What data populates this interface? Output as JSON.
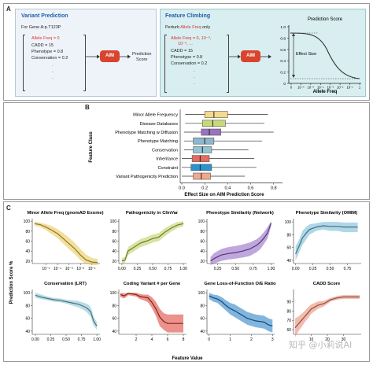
{
  "panelA": {
    "label": "A",
    "left": {
      "title": "Variant Prediction",
      "gene": "For Gene A:p.T123P",
      "features": [
        "Allele Freq = 0",
        "CADD = 15",
        "Phenotype = 0.8",
        "Conservation = 0.2",
        "·",
        "·",
        "·"
      ],
      "aim": "AIM",
      "output": "Prediction\nScore"
    },
    "right": {
      "title": "Feature Climbing",
      "perturb_pre": "Perturb ",
      "perturb_red": "Allele Freq",
      "perturb_post": " only",
      "features": [
        "Allele Freq = 0, 10⁻⁶,",
        "10⁻⁵, ...",
        "CADD = 15",
        "Phenotype = 0.8",
        "Conservation = 0.2",
        "·",
        "·",
        "·"
      ],
      "aim": "AIM",
      "mini_chart": {
        "title": "Prediction Score",
        "xlabel": "Allele Freq",
        "annotation": "Effect Size",
        "yticks": [
          "1.0",
          "0.8",
          "0.6",
          "0.4",
          "0.2",
          "0"
        ],
        "xticks": [
          "0",
          "10⁻⁶",
          "10⁻⁵",
          "10⁻⁴",
          "10⁻³",
          "10⁻²",
          "10⁻¹",
          "1"
        ]
      }
    }
  },
  "panelB": {
    "label": "B",
    "ylabel": "Feature Class",
    "xlabel": "Effect Size on AIM Prediction Score",
    "xticks": [
      "0.0",
      "0.2",
      "0.4",
      "0.6",
      "0.8"
    ]
  },
  "panelC": {
    "label": "C",
    "ylabel": "Prediction Score %",
    "xlabel": "Feature Value",
    "watermark": "知乎 @小莉说AI"
  },
  "chart_data": [
    {
      "type": "boxplot",
      "categories": [
        "Minor Allele Frequency",
        "Disease Databases",
        "Phenotype Matching w Diffusion",
        "Phenotype Matching",
        "Conservation",
        "Inheritance",
        "Constraint",
        "Variant Pathogenicity Prediction"
      ],
      "colors": [
        "#f3d98c",
        "#c8d97a",
        "#9a72c0",
        "#8fb8cc",
        "#8fc6d6",
        "#e46b5e",
        "#2b92cf",
        "#f3a88e"
      ],
      "boxes": [
        {
          "whisker_low": 0.03,
          "q1": 0.2,
          "median": 0.28,
          "q3": 0.4,
          "whisker_high": 0.75
        },
        {
          "whisker_low": 0.03,
          "q1": 0.18,
          "median": 0.27,
          "q3": 0.38,
          "whisker_high": 0.72
        },
        {
          "whisker_low": 0.02,
          "q1": 0.17,
          "median": 0.24,
          "q3": 0.34,
          "whisker_high": 0.8
        },
        {
          "whisker_low": 0.02,
          "q1": 0.1,
          "median": 0.2,
          "q3": 0.28,
          "whisker_high": 0.7
        },
        {
          "whisker_low": 0.02,
          "q1": 0.1,
          "median": 0.18,
          "q3": 0.26,
          "whisker_high": 0.58
        },
        {
          "whisker_low": 0.0,
          "q1": 0.09,
          "median": 0.16,
          "q3": 0.24,
          "whisker_high": 0.63
        },
        {
          "whisker_low": 0.0,
          "q1": 0.08,
          "median": 0.16,
          "q3": 0.26,
          "whisker_high": 0.65
        },
        {
          "whisker_low": 0.0,
          "q1": 0.1,
          "median": 0.17,
          "q3": 0.25,
          "whisker_high": 0.55
        }
      ],
      "xlim": [
        0,
        0.85
      ]
    },
    {
      "type": "area",
      "title": "Minor Allele Freq (gnomAD Exome)",
      "color": "#e8c548",
      "x": [
        -6,
        -5.5,
        -5,
        -4.5,
        -4,
        -3.5,
        -3,
        -2.5,
        -2,
        -1.5,
        -1,
        -0.5
      ],
      "xticks": [
        "10⁻⁵",
        "10⁻⁴",
        "10⁻³",
        "10⁻²",
        "10⁻¹"
      ],
      "xtick_values": [
        -5,
        -4,
        -3,
        -2,
        -1
      ],
      "mean": [
        95,
        93,
        88,
        82,
        75,
        65,
        55,
        45,
        32,
        22,
        18,
        17
      ],
      "lower": [
        91,
        88,
        82,
        74,
        66,
        55,
        44,
        34,
        22,
        14,
        12,
        12
      ],
      "upper": [
        99,
        97,
        94,
        90,
        84,
        76,
        67,
        57,
        44,
        33,
        26,
        24
      ],
      "xlim": [
        -6.2,
        -0.3
      ],
      "ylim": [
        15,
        105
      ],
      "yticks": [
        20,
        40,
        60,
        80,
        100
      ]
    },
    {
      "type": "area",
      "title": "Pathogenicity in ClinVar",
      "color": "#b9cc55",
      "x": [
        0,
        0.05,
        0.1,
        0.2,
        0.3,
        0.4,
        0.5,
        0.6,
        0.7,
        0.8,
        0.9,
        1.0
      ],
      "xticks": [
        "0.00",
        "0.25",
        "0.50",
        "0.75",
        "1.00"
      ],
      "xtick_values": [
        0,
        0.25,
        0.5,
        0.75,
        1.0
      ],
      "mean": [
        20,
        22,
        40,
        48,
        56,
        60,
        65,
        68,
        78,
        86,
        92,
        95
      ],
      "lower": [
        15,
        17,
        32,
        40,
        48,
        52,
        57,
        60,
        70,
        79,
        86,
        90
      ],
      "upper": [
        26,
        28,
        48,
        56,
        64,
        68,
        73,
        76,
        86,
        93,
        98,
        100
      ],
      "xlim": [
        -0.05,
        1.05
      ],
      "ylim": [
        15,
        105
      ],
      "yticks": [
        20,
        40,
        60,
        80,
        100
      ]
    },
    {
      "type": "area",
      "title": "Phenotype Similarity (Network)",
      "color": "#8a5cc0",
      "x": [
        0.15,
        0.2,
        0.3,
        0.4,
        0.5,
        0.6,
        0.7,
        0.8,
        0.85,
        0.9,
        0.95,
        1.0
      ],
      "xticks": [
        "0.25",
        "0.50",
        "0.75",
        "1.00"
      ],
      "xtick_values": [
        0.25,
        0.5,
        0.75,
        1.0
      ],
      "mean": [
        20,
        25,
        32,
        35,
        37,
        40,
        44,
        52,
        58,
        66,
        76,
        96
      ],
      "lower": [
        12,
        15,
        20,
        23,
        25,
        27,
        30,
        38,
        44,
        54,
        65,
        90
      ],
      "upper": [
        28,
        36,
        44,
        48,
        50,
        53,
        57,
        64,
        70,
        78,
        88,
        100
      ],
      "xlim": [
        0.1,
        1.05
      ],
      "ylim": [
        15,
        105
      ],
      "yticks": [
        20,
        40,
        60,
        80,
        100
      ]
    },
    {
      "type": "area",
      "title": "Phenotype Similarity (OMIM)",
      "color": "#6db6d6",
      "x": [
        0.0,
        0.05,
        0.1,
        0.15,
        0.2,
        0.3,
        0.4,
        0.5,
        0.6,
        0.7,
        0.8,
        0.9
      ],
      "xticks": [
        "0.00",
        "0.25",
        "0.50",
        "0.75"
      ],
      "xtick_values": [
        0,
        0.25,
        0.5,
        0.75
      ],
      "mean": [
        50,
        62,
        75,
        82,
        88,
        92,
        94,
        93,
        93,
        92,
        92,
        92
      ],
      "lower": [
        40,
        52,
        64,
        72,
        80,
        86,
        88,
        86,
        86,
        84,
        84,
        84
      ],
      "upper": [
        62,
        72,
        86,
        92,
        96,
        98,
        100,
        100,
        100,
        99,
        99,
        99
      ],
      "xlim": [
        -0.03,
        0.95
      ],
      "ylim": [
        35,
        105
      ],
      "yticks": [
        40,
        60,
        80,
        100
      ]
    },
    {
      "type": "area",
      "title": "Conservation (LRT)",
      "color": "#7fc0d0",
      "x": [
        0.0,
        0.1,
        0.2,
        0.3,
        0.4,
        0.5,
        0.6,
        0.7,
        0.8,
        0.85,
        0.9,
        0.95,
        1.0
      ],
      "xticks": [
        "0.00",
        "0.25",
        "0.50",
        "0.75",
        "1.00"
      ],
      "xtick_values": [
        0,
        0.25,
        0.5,
        0.75,
        1.0
      ],
      "mean": [
        96,
        93,
        91,
        89,
        88,
        86,
        84,
        82,
        78,
        75,
        70,
        55,
        48
      ],
      "lower": [
        92,
        90,
        88,
        86,
        85,
        83,
        80,
        77,
        72,
        68,
        62,
        48,
        42
      ],
      "upper": [
        100,
        97,
        94,
        92,
        91,
        89,
        88,
        87,
        84,
        82,
        78,
        62,
        54
      ],
      "xlim": [
        -0.05,
        1.05
      ],
      "ylim": [
        35,
        105
      ],
      "yticks": [
        40,
        60,
        80,
        100
      ]
    },
    {
      "type": "area",
      "title": "Coding Variant # per Gene",
      "color": "#d9382c",
      "x": [
        0,
        0.5,
        1,
        1.5,
        2,
        2.5,
        3,
        3.5,
        4,
        4.5,
        5,
        5.5,
        6,
        7,
        8
      ],
      "xticks": [
        "2",
        "4",
        "6",
        "8"
      ],
      "xtick_values": [
        2,
        4,
        6,
        8
      ],
      "mean": [
        97,
        95,
        99,
        98,
        97,
        94,
        93,
        92,
        85,
        75,
        62,
        55,
        52,
        52,
        52
      ],
      "lower": [
        93,
        91,
        96,
        95,
        94,
        90,
        88,
        85,
        76,
        64,
        48,
        42,
        38,
        38,
        38
      ],
      "upper": [
        100,
        99,
        100,
        100,
        100,
        98,
        97,
        97,
        93,
        86,
        75,
        68,
        66,
        66,
        66
      ],
      "xlim": [
        -0.2,
        8.4
      ],
      "ylim": [
        35,
        105
      ],
      "yticks": [
        40,
        60,
        80,
        100
      ]
    },
    {
      "type": "area",
      "title": "Gene Loss-of-Function O/E Ratio",
      "color": "#1a78c2",
      "x": [
        0,
        0.2,
        0.4,
        0.6,
        0.8,
        1.0,
        1.2,
        1.4,
        1.6,
        1.8,
        2.0,
        2.2,
        2.4,
        2.6,
        2.8,
        3.0
      ],
      "xticks": [
        "0",
        "1",
        "2",
        "3"
      ],
      "xtick_values": [
        0,
        1,
        2,
        3
      ],
      "mean": [
        95,
        92,
        90,
        86,
        80,
        75,
        72,
        68,
        64,
        60,
        58,
        56,
        55,
        54,
        50,
        48
      ],
      "lower": [
        90,
        86,
        84,
        78,
        72,
        66,
        62,
        58,
        54,
        50,
        48,
        46,
        45,
        44,
        40,
        38
      ],
      "upper": [
        100,
        97,
        96,
        93,
        88,
        84,
        82,
        78,
        74,
        70,
        68,
        66,
        65,
        64,
        60,
        58
      ],
      "xlim": [
        -0.1,
        3.1
      ],
      "ylim": [
        35,
        105
      ],
      "yticks": [
        40,
        60,
        80,
        100
      ]
    },
    {
      "type": "area",
      "title": "CADD Score",
      "color": "#e8836a",
      "x": [
        0,
        2,
        4,
        6,
        8,
        10,
        14,
        18,
        22,
        26,
        30,
        34,
        38,
        40
      ],
      "xticks": [
        "10",
        "20",
        "30"
      ],
      "xtick_values": [
        10,
        20,
        30
      ],
      "mean": [
        62,
        66,
        70,
        74,
        78,
        82,
        86,
        88,
        92,
        94,
        95,
        95,
        95,
        95
      ],
      "lower": [
        52,
        58,
        63,
        68,
        72,
        77,
        82,
        85,
        90,
        92,
        93,
        93,
        93,
        93
      ],
      "upper": [
        72,
        74,
        77,
        80,
        84,
        87,
        90,
        91,
        94,
        96,
        97,
        97,
        97,
        97
      ],
      "xlim": [
        -1,
        41
      ],
      "ylim": [
        55,
        103
      ],
      "yticks": [
        60,
        70,
        80,
        90
      ]
    }
  ]
}
